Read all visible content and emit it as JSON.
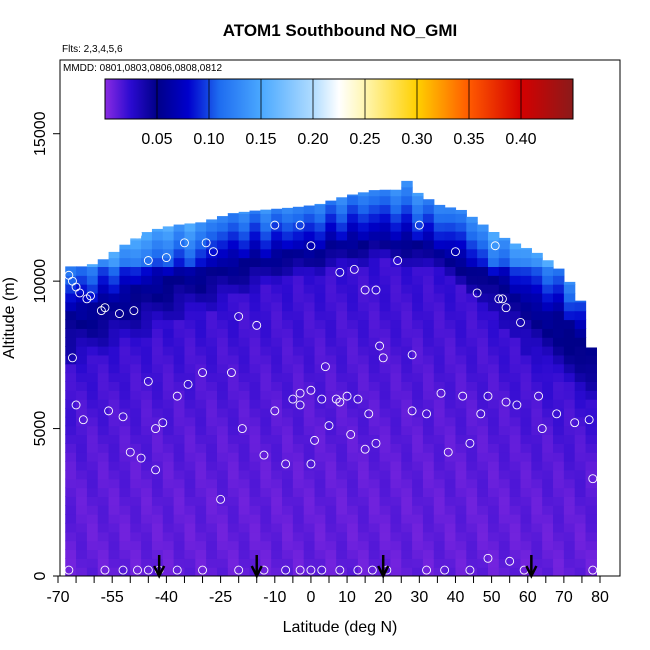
{
  "chart_data": {
    "type": "heatmap",
    "title": "ATOM1 Southbound NO_GMI",
    "subtitle_flights": "Flts: 2,3,4,5,6",
    "subtitle_dates": "MMDD: 0801,0803,0806,0808,0812",
    "xlabel": "Latitude (deg N)",
    "ylabel": "Altitude (m)",
    "xlim": [
      -70,
      80
    ],
    "ylim": [
      0,
      17500
    ],
    "x_ticks": [
      -70,
      -55,
      -40,
      -25,
      -10,
      0,
      10,
      20,
      30,
      40,
      50,
      60,
      70,
      80
    ],
    "x_tick_labels": [
      "-70",
      "-55",
      "-40",
      "-25",
      "-10",
      "0",
      "10",
      "20",
      "30",
      "40",
      "50",
      "60",
      "70",
      "80"
    ],
    "x_minor_ticks": [
      -65,
      -60,
      -50,
      -45,
      -35,
      -30,
      -20,
      -15,
      -5,
      5,
      15,
      25,
      35,
      45,
      55,
      65,
      75
    ],
    "y_ticks": [
      0,
      5000,
      10000,
      15000
    ],
    "y_tick_labels": [
      "0",
      "5000",
      "10000",
      "15000"
    ],
    "colorbar": {
      "range": [
        0,
        0.45
      ],
      "ticks": [
        0.05,
        0.1,
        0.15,
        0.2,
        0.25,
        0.3,
        0.35,
        0.4
      ],
      "tick_labels": [
        "0.05",
        "0.10",
        "0.15",
        "0.20",
        "0.25",
        "0.30",
        "0.35",
        "0.40"
      ],
      "stops": [
        {
          "v": 0.0,
          "color": "#8a2be2"
        },
        {
          "v": 0.025,
          "color": "#2a0ad0"
        },
        {
          "v": 0.05,
          "color": "#000088"
        },
        {
          "v": 0.08,
          "color": "#0000cc"
        },
        {
          "v": 0.11,
          "color": "#1e6cf0"
        },
        {
          "v": 0.15,
          "color": "#4aa8ff"
        },
        {
          "v": 0.2,
          "color": "#b0dcff"
        },
        {
          "v": 0.225,
          "color": "#ffffff"
        },
        {
          "v": 0.25,
          "color": "#fff6b0"
        },
        {
          "v": 0.3,
          "color": "#ffd000"
        },
        {
          "v": 0.35,
          "color": "#ff5a00"
        },
        {
          "v": 0.4,
          "color": "#d40000"
        },
        {
          "v": 0.45,
          "color": "#8b1a1a"
        }
      ]
    },
    "data_lat_range": [
      -68,
      79
    ],
    "profile_top": [
      [
        -68,
        10500
      ],
      [
        -62,
        10500
      ],
      [
        -58,
        10700
      ],
      [
        -52,
        11200
      ],
      [
        -45,
        11700
      ],
      [
        -38,
        11900
      ],
      [
        -30,
        12000
      ],
      [
        -22,
        12300
      ],
      [
        -15,
        12400
      ],
      [
        -5,
        12500
      ],
      [
        2,
        12600
      ],
      [
        10,
        12900
      ],
      [
        18,
        13100
      ],
      [
        24,
        13100
      ],
      [
        26,
        13500
      ],
      [
        28,
        13100
      ],
      [
        35,
        12600
      ],
      [
        42,
        12400
      ],
      [
        50,
        11700
      ],
      [
        56,
        11300
      ],
      [
        62,
        11000
      ],
      [
        68,
        10500
      ],
      [
        72,
        9900
      ],
      [
        76,
        9000
      ],
      [
        79,
        6500
      ]
    ],
    "dark_band": [
      [
        -68,
        7000,
        10500
      ],
      [
        -60,
        7500,
        10700
      ],
      [
        -50,
        8000,
        11200
      ],
      [
        -40,
        8500,
        11800
      ],
      [
        -30,
        9000,
        12000
      ],
      [
        -20,
        9500,
        12300
      ],
      [
        -10,
        10000,
        12400
      ],
      [
        0,
        10200,
        12600
      ],
      [
        10,
        10500,
        12900
      ],
      [
        20,
        10700,
        13100
      ],
      [
        30,
        10500,
        12800
      ],
      [
        40,
        10000,
        12400
      ],
      [
        50,
        9000,
        11700
      ],
      [
        60,
        7500,
        11000
      ],
      [
        70,
        6500,
        10300
      ],
      [
        79,
        6000,
        9000
      ]
    ],
    "points": [
      [
        -67,
        200
      ],
      [
        -57,
        200
      ],
      [
        -52,
        200
      ],
      [
        -48,
        200
      ],
      [
        -45,
        200
      ],
      [
        -42,
        200
      ],
      [
        -37,
        200
      ],
      [
        -30,
        200
      ],
      [
        -20,
        200
      ],
      [
        -13,
        200
      ],
      [
        -7,
        200
      ],
      [
        -3,
        200
      ],
      [
        0,
        200
      ],
      [
        3,
        200
      ],
      [
        8,
        200
      ],
      [
        13,
        200
      ],
      [
        17,
        200
      ],
      [
        21,
        200
      ],
      [
        32,
        200
      ],
      [
        37,
        200
      ],
      [
        44,
        200
      ],
      [
        49,
        600
      ],
      [
        55,
        500
      ],
      [
        59,
        200
      ],
      [
        78,
        200
      ],
      [
        -67,
        10200
      ],
      [
        -66,
        10000
      ],
      [
        -65,
        9800
      ],
      [
        -64,
        9600
      ],
      [
        -62,
        9400
      ],
      [
        -61,
        9500
      ],
      [
        -58,
        9000
      ],
      [
        -57,
        9100
      ],
      [
        -53,
        8900
      ],
      [
        -49,
        9000
      ],
      [
        -48,
        11600
      ],
      [
        -45,
        10700
      ],
      [
        -40,
        10800
      ],
      [
        -35,
        11300
      ],
      [
        -29,
        11300
      ],
      [
        -27,
        11000
      ],
      [
        -20,
        8800
      ],
      [
        -15,
        8500
      ],
      [
        -10,
        11900
      ],
      [
        -3,
        11900
      ],
      [
        0,
        11200
      ],
      [
        8,
        10300
      ],
      [
        12,
        10400
      ],
      [
        15,
        9700
      ],
      [
        18,
        9700
      ],
      [
        24,
        10700
      ],
      [
        30,
        11900
      ],
      [
        40,
        11000
      ],
      [
        51,
        11200
      ],
      [
        46,
        9600
      ],
      [
        52,
        9400
      ],
      [
        53,
        9400
      ],
      [
        54,
        9100
      ],
      [
        58,
        8600
      ],
      [
        71,
        11300
      ],
      [
        75,
        9900
      ],
      [
        78,
        9800
      ],
      [
        -66,
        7400
      ],
      [
        -65,
        5800
      ],
      [
        -63,
        5300
      ],
      [
        -56,
        5600
      ],
      [
        -52,
        5400
      ],
      [
        -50,
        4200
      ],
      [
        -47,
        4000
      ],
      [
        -43,
        5000
      ],
      [
        -41,
        5200
      ],
      [
        -37,
        6100
      ],
      [
        -34,
        6500
      ],
      [
        -30,
        6900
      ],
      [
        -22,
        6900
      ],
      [
        -19,
        5000
      ],
      [
        -13,
        4100
      ],
      [
        -10,
        5600
      ],
      [
        -5,
        6000
      ],
      [
        -3,
        5800
      ],
      [
        0,
        6300
      ],
      [
        1,
        4600
      ],
      [
        3,
        6000
      ],
      [
        5,
        5100
      ],
      [
        8,
        5900
      ],
      [
        11,
        4800
      ],
      [
        13,
        6000
      ],
      [
        16,
        5500
      ],
      [
        19,
        7800
      ],
      [
        20,
        7400
      ],
      [
        28,
        7500
      ],
      [
        32,
        5500
      ],
      [
        36,
        6200
      ],
      [
        38,
        4200
      ],
      [
        42,
        6100
      ],
      [
        44,
        4500
      ],
      [
        47,
        5500
      ],
      [
        49,
        6100
      ],
      [
        54,
        5900
      ],
      [
        57,
        5800
      ],
      [
        63,
        6100
      ],
      [
        64,
        5000
      ],
      [
        68,
        5500
      ],
      [
        73,
        5200
      ],
      [
        77,
        5300
      ],
      [
        78,
        3300
      ],
      [
        -45,
        6600
      ],
      [
        -43,
        3600
      ],
      [
        -25,
        2600
      ],
      [
        -7,
        3800
      ],
      [
        -3,
        6200
      ],
      [
        0,
        3800
      ],
      [
        4,
        7100
      ],
      [
        7,
        6000
      ],
      [
        10,
        6100
      ],
      [
        15,
        4300
      ],
      [
        18,
        4500
      ],
      [
        28,
        5600
      ]
    ],
    "arrow_lats": [
      -42,
      -15,
      20,
      61
    ]
  }
}
